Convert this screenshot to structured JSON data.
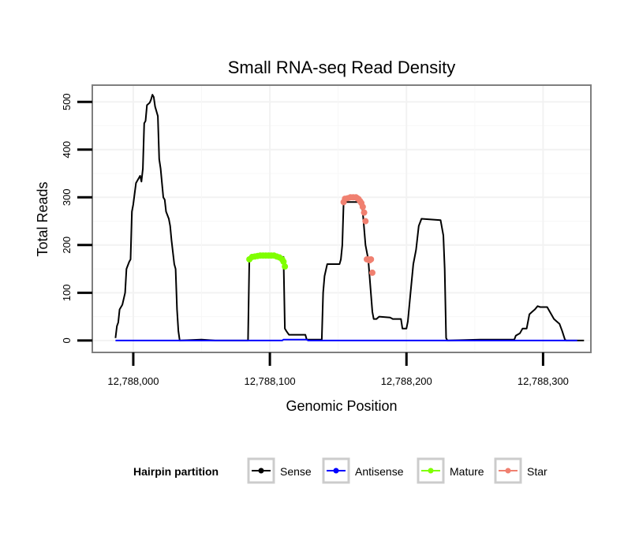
{
  "chart_data": {
    "type": "line",
    "title": "Small RNA-seq Read Density",
    "xlabel": "Genomic Position",
    "ylabel": "Total Reads",
    "xlim": [
      12787970,
      12788335
    ],
    "ylim": [
      -25,
      535
    ],
    "x_ticks": [
      12788000,
      12788100,
      12788200,
      12788300
    ],
    "x_tick_labels": [
      "12,788,000",
      "12,788,100",
      "12,788,200",
      "12,788,300"
    ],
    "y_ticks": [
      0,
      100,
      200,
      300,
      400,
      500
    ],
    "y_tick_labels": [
      "0",
      "100",
      "200",
      "300",
      "400",
      "500"
    ],
    "grid": true,
    "legend": {
      "title": "Hairpin partition",
      "placement": "bottom",
      "entries": [
        {
          "label": "Sense",
          "color": "#000000"
        },
        {
          "label": "Antisense",
          "color": "#0000ff"
        },
        {
          "label": "Mature",
          "color": "#7fff00"
        },
        {
          "label": "Star",
          "color": "#f08070"
        }
      ]
    },
    "series": [
      {
        "name": "Sense",
        "color": "#000000",
        "style": "line",
        "points": [
          [
            12787987,
            5
          ],
          [
            12787988,
            30
          ],
          [
            12787989,
            38
          ],
          [
            12787990,
            65
          ],
          [
            12787992,
            75
          ],
          [
            12787994,
            100
          ],
          [
            12787995,
            150
          ],
          [
            12787997,
            165
          ],
          [
            12787998,
            170
          ],
          [
            12787999,
            270
          ],
          [
            12788000,
            285
          ],
          [
            12788002,
            330
          ],
          [
            12788004,
            340
          ],
          [
            12788005,
            345
          ],
          [
            12788006,
            333
          ],
          [
            12788007,
            360
          ],
          [
            12788008,
            455
          ],
          [
            12788009,
            460
          ],
          [
            12788010,
            493
          ],
          [
            12788012,
            498
          ],
          [
            12788013,
            505
          ],
          [
            12788014,
            515
          ],
          [
            12788015,
            510
          ],
          [
            12788016,
            490
          ],
          [
            12788018,
            470
          ],
          [
            12788019,
            380
          ],
          [
            12788020,
            360
          ],
          [
            12788022,
            300
          ],
          [
            12788023,
            295
          ],
          [
            12788024,
            270
          ],
          [
            12788026,
            255
          ],
          [
            12788027,
            240
          ],
          [
            12788028,
            210
          ],
          [
            12788030,
            160
          ],
          [
            12788031,
            150
          ],
          [
            12788032,
            65
          ],
          [
            12788033,
            20
          ],
          [
            12788034,
            0
          ],
          [
            12788050,
            2
          ],
          [
            12788060,
            0
          ],
          [
            12788084,
            0
          ],
          [
            12788085,
            175
          ],
          [
            12788110,
            175
          ],
          [
            12788111,
            25
          ],
          [
            12788112,
            20
          ],
          [
            12788114,
            12
          ],
          [
            12788126,
            12
          ],
          [
            12788127,
            2
          ],
          [
            12788138,
            2
          ],
          [
            12788139,
            100
          ],
          [
            12788140,
            135
          ],
          [
            12788142,
            160
          ],
          [
            12788151,
            160
          ],
          [
            12788152,
            170
          ],
          [
            12788153,
            200
          ],
          [
            12788154,
            290
          ],
          [
            12788167,
            290
          ],
          [
            12788168,
            270
          ],
          [
            12788170,
            200
          ],
          [
            12788172,
            170
          ],
          [
            12788175,
            60
          ],
          [
            12788176,
            45
          ],
          [
            12788178,
            45
          ],
          [
            12788180,
            50
          ],
          [
            12788188,
            48
          ],
          [
            12788190,
            45
          ],
          [
            12788196,
            45
          ],
          [
            12788197,
            25
          ],
          [
            12788200,
            25
          ],
          [
            12788201,
            40
          ],
          [
            12788203,
            100
          ],
          [
            12788205,
            160
          ],
          [
            12788207,
            190
          ],
          [
            12788209,
            240
          ],
          [
            12788211,
            255
          ],
          [
            12788225,
            252
          ],
          [
            12788227,
            220
          ],
          [
            12788228,
            150
          ],
          [
            12788229,
            5
          ],
          [
            12788230,
            0
          ],
          [
            12788254,
            2
          ],
          [
            12788279,
            2
          ],
          [
            12788280,
            10
          ],
          [
            12788283,
            15
          ],
          [
            12788285,
            25
          ],
          [
            12788288,
            25
          ],
          [
            12788290,
            55
          ],
          [
            12788292,
            60
          ],
          [
            12788294,
            65
          ],
          [
            12788296,
            72
          ],
          [
            12788298,
            70
          ],
          [
            12788303,
            70
          ],
          [
            12788304,
            65
          ],
          [
            12788306,
            55
          ],
          [
            12788308,
            45
          ],
          [
            12788310,
            40
          ],
          [
            12788312,
            35
          ],
          [
            12788314,
            20
          ],
          [
            12788316,
            2
          ],
          [
            12788317,
            0
          ],
          [
            12788330,
            0
          ]
        ]
      },
      {
        "name": "Antisense",
        "color": "#0000ff",
        "style": "line",
        "points": [
          [
            12787987,
            0
          ],
          [
            12788109,
            0
          ],
          [
            12788110,
            2
          ],
          [
            12788127,
            2
          ],
          [
            12788128,
            0
          ],
          [
            12788325,
            0
          ]
        ]
      },
      {
        "name": "Mature",
        "color": "#7fff00",
        "style": "points",
        "points": [
          [
            12788085,
            170
          ],
          [
            12788087,
            175
          ],
          [
            12788089,
            176
          ],
          [
            12788091,
            177
          ],
          [
            12788093,
            178
          ],
          [
            12788095,
            178
          ],
          [
            12788097,
            178
          ],
          [
            12788099,
            178
          ],
          [
            12788101,
            178
          ],
          [
            12788103,
            178
          ],
          [
            12788105,
            176
          ],
          [
            12788107,
            174
          ],
          [
            12788109,
            170
          ],
          [
            12788110,
            165
          ],
          [
            12788111,
            155
          ]
        ]
      },
      {
        "name": "Star",
        "color": "#f08070",
        "style": "points",
        "points": [
          [
            12788154,
            290
          ],
          [
            12788155,
            297
          ],
          [
            12788157,
            298
          ],
          [
            12788159,
            300
          ],
          [
            12788161,
            300
          ],
          [
            12788163,
            300
          ],
          [
            12788164,
            298
          ],
          [
            12788165,
            296
          ],
          [
            12788166,
            292
          ],
          [
            12788167,
            288
          ],
          [
            12788168,
            280
          ],
          [
            12788169,
            268
          ],
          [
            12788170,
            250
          ],
          [
            12788171,
            170
          ],
          [
            12788172,
            170
          ],
          [
            12788173,
            168
          ],
          [
            12788174,
            170
          ],
          [
            12788175,
            142
          ]
        ]
      }
    ]
  }
}
